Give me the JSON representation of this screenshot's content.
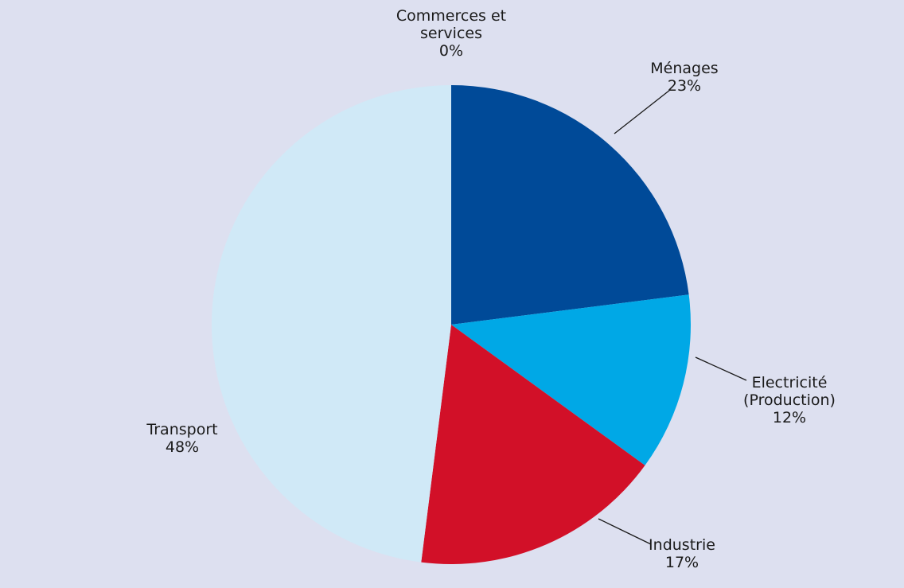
{
  "chart_data": {
    "type": "pie",
    "start_angle_deg": 0,
    "direction": "clockwise",
    "slices": [
      {
        "label": [
          "Ménages"
        ],
        "pct_label": "23%",
        "value": 23,
        "color": "#004a98"
      },
      {
        "label": [
          "Electricité",
          "(Production)"
        ],
        "pct_label": "12%",
        "value": 12,
        "color": "#00a8e6"
      },
      {
        "label": [
          "Industrie"
        ],
        "pct_label": "17%",
        "value": 17,
        "color": "#d21028"
      },
      {
        "label": [
          "Transport"
        ],
        "pct_label": "48%",
        "value": 48,
        "color": "#d0e9f7"
      },
      {
        "label": [
          "Commerces et",
          "services"
        ],
        "pct_label": "0%",
        "value": 0,
        "color": "#004a98"
      }
    ]
  }
}
